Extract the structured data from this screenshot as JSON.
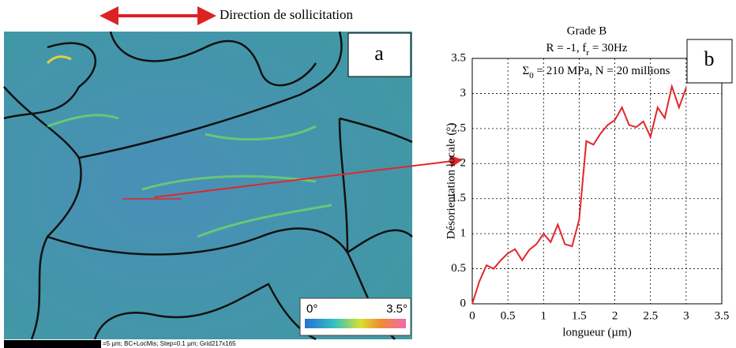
{
  "panel_a": {
    "direction": "Direction de sollicitation",
    "label": "a",
    "colorbar_min": "0°",
    "colorbar_max": "3.5°",
    "scale_text": "=5 µm; BC+LocMis; Step=0.1 µm; Grid217x165"
  },
  "panel_b": {
    "label": "b"
  },
  "chart_data": {
    "type": "line",
    "title": "Grade B",
    "subtitle_1": [
      "R = -1, f",
      "r",
      " = 30Hz"
    ],
    "subtitle_2": [
      "Σ",
      "0",
      " = 210 MPa, N = 20 millions"
    ],
    "x_label": "longueur (µm)",
    "y_label": "Désorientation locale (°)",
    "xlim": [
      0,
      3.5
    ],
    "ylim": [
      0,
      3.5
    ],
    "xticks": [
      0,
      0.5,
      1,
      1.5,
      2,
      2.5,
      3,
      3.5
    ],
    "yticks": [
      0,
      0.5,
      1,
      1.5,
      2,
      2.5,
      3,
      3.5
    ],
    "grid": true,
    "x": [
      0,
      0.1,
      0.2,
      0.3,
      0.4,
      0.5,
      0.6,
      0.7,
      0.8,
      0.9,
      1.0,
      1.1,
      1.2,
      1.3,
      1.4,
      1.5,
      1.6,
      1.7,
      1.8,
      1.9,
      2.0,
      2.1,
      2.2,
      2.3,
      2.4,
      2.5,
      2.6,
      2.7,
      2.8,
      2.9,
      3.0
    ],
    "series": [
      {
        "color": "#e3262b",
        "values": [
          0,
          0.32,
          0.55,
          0.5,
          0.62,
          0.72,
          0.78,
          0.62,
          0.77,
          0.85,
          1.0,
          0.88,
          1.13,
          0.85,
          0.82,
          1.2,
          2.32,
          2.27,
          2.43,
          2.55,
          2.62,
          2.8,
          2.55,
          2.52,
          2.6,
          2.38,
          2.8,
          2.65,
          3.1,
          2.8,
          3.08
        ]
      }
    ]
  }
}
